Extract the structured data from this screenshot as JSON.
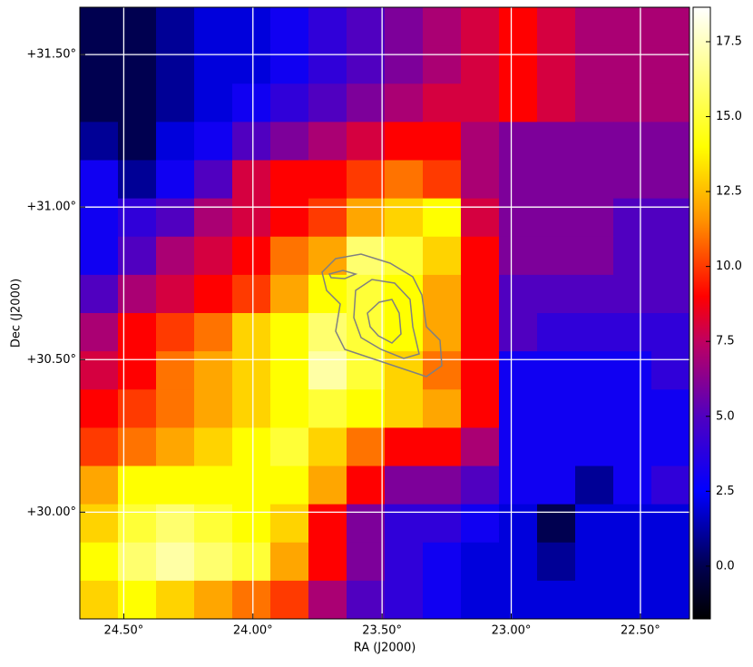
{
  "chart_data": {
    "type": "heatmap",
    "xlabel": "RA (J2000)",
    "ylabel": "Dec (J2000)",
    "xlim": [
      24.67,
      22.31
    ],
    "ylim": [
      29.65,
      31.655
    ],
    "xticks": [
      {
        "value": 24.5,
        "label": "24.50°"
      },
      {
        "value": 24.0,
        "label": "24.00°"
      },
      {
        "value": 23.5,
        "label": "23.50°"
      },
      {
        "value": 23.0,
        "label": "23.00°"
      },
      {
        "value": 22.5,
        "label": "22.50°"
      }
    ],
    "yticks": [
      {
        "value": 30.0,
        "label": "+30.00°"
      },
      {
        "value": 30.5,
        "label": "+30.50°"
      },
      {
        "value": 31.0,
        "label": "+31.00°"
      },
      {
        "value": 31.5,
        "label": "+31.50°"
      }
    ],
    "grid": true,
    "grid_color": "#ffffff",
    "clim": [
      -1.76,
      18.65
    ],
    "cticks": [
      {
        "value": 0,
        "label": "0.0"
      },
      {
        "value": 2.5,
        "label": "2.5"
      },
      {
        "value": 5,
        "label": "5.0"
      },
      {
        "value": 7.5,
        "label": "7.5"
      },
      {
        "value": 10,
        "label": "10.0"
      },
      {
        "value": 12.5,
        "label": "12.5"
      },
      {
        "value": 15,
        "label": "15.0"
      },
      {
        "value": 17.5,
        "label": "17.5"
      }
    ],
    "colormap": [
      {
        "value": -1.76,
        "color": "#000000"
      },
      {
        "value": 0,
        "color": "#000050"
      },
      {
        "value": 2.5,
        "color": "#0000ff"
      },
      {
        "value": 5,
        "color": "#5000c0"
      },
      {
        "value": 7.5,
        "color": "#c00060"
      },
      {
        "value": 9,
        "color": "#ff0000"
      },
      {
        "value": 11.5,
        "color": "#ff9000"
      },
      {
        "value": 14,
        "color": "#ffff00"
      },
      {
        "value": 18.65,
        "color": "#ffffff"
      }
    ],
    "z": [
      [
        0,
        0,
        1,
        2,
        2,
        3,
        4,
        5,
        6,
        7,
        8,
        9,
        8,
        7,
        7,
        7
      ],
      [
        0,
        0,
        1,
        2,
        2,
        3,
        4,
        5,
        6,
        7,
        8,
        9,
        8,
        7,
        7,
        7
      ],
      [
        0,
        0,
        1,
        2,
        3,
        4,
        5,
        6,
        7,
        8,
        8,
        9,
        8,
        7,
        7,
        7
      ],
      [
        1,
        0,
        2,
        3,
        5,
        6,
        7,
        8,
        9,
        9,
        7,
        6,
        6,
        6,
        6,
        6
      ],
      [
        3,
        1,
        3,
        5,
        8,
        9,
        9,
        10,
        11,
        10,
        7,
        6,
        6,
        6,
        6,
        6
      ],
      [
        3,
        4,
        5,
        7,
        8,
        9,
        10,
        12,
        13,
        14,
        8,
        6,
        6,
        6,
        5,
        5
      ],
      [
        3,
        5,
        7,
        8,
        9,
        11,
        12,
        16,
        15,
        13,
        9,
        6,
        6,
        6,
        5,
        5
      ],
      [
        5,
        7,
        8,
        9,
        10,
        12,
        14,
        15,
        14,
        12,
        9,
        5,
        5,
        5,
        5,
        5
      ],
      [
        7,
        9,
        10,
        11,
        13,
        14,
        16,
        15,
        14,
        12,
        9,
        5,
        4,
        4,
        4,
        4
      ],
      [
        8,
        9,
        11,
        12,
        13,
        14,
        17,
        15,
        13,
        11,
        9,
        3,
        3,
        3,
        3,
        4
      ],
      [
        9,
        10,
        11,
        12,
        13,
        14,
        15,
        14,
        13,
        12,
        9,
        3,
        3,
        3,
        3,
        3
      ],
      [
        10,
        11,
        12,
        13,
        14,
        15,
        13,
        11,
        9,
        9,
        7,
        3,
        3,
        3,
        3,
        3
      ],
      [
        12,
        14,
        14,
        14,
        14,
        14,
        12,
        9,
        6,
        6,
        5,
        3,
        3,
        1,
        3,
        4
      ],
      [
        13,
        15,
        16,
        15,
        14,
        13,
        9,
        6,
        4,
        4,
        3,
        2,
        0,
        2,
        2,
        2
      ],
      [
        14,
        16,
        17,
        16,
        15,
        12,
        9,
        6,
        4,
        3,
        2,
        2,
        1,
        2,
        2,
        2
      ],
      [
        13,
        14,
        13,
        12,
        11,
        10,
        7,
        5,
        4,
        3,
        2,
        2,
        2,
        2,
        2,
        2
      ]
    ]
  }
}
